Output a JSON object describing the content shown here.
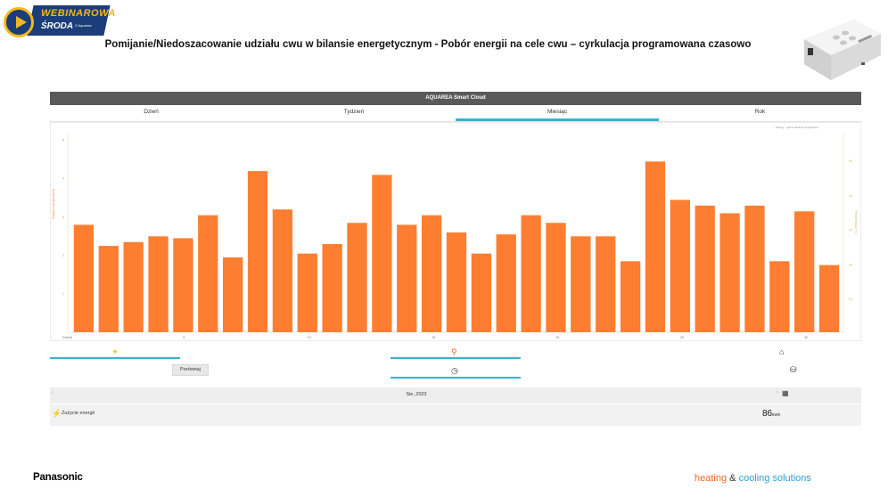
{
  "logo": {
    "line1": "WEBINAROWA",
    "line2": "ŚRODA",
    "line3": "Z Aquarea"
  },
  "slide_title": "Pomijanie/Niedoszacowanie udziału cwu w bilansie energetycznym - Pobór energii na cele cwu – cyrkulacja programowana czasowo",
  "app": {
    "title": "AQUAREA Smart Cloud",
    "tabs": [
      {
        "label": "Dzień",
        "active": false
      },
      {
        "label": "Tydzień",
        "active": false
      },
      {
        "label": "Miesiąc",
        "active": true
      },
      {
        "label": "Rok",
        "active": false
      }
    ],
    "legend_note": "Energy · jest to wartości przybliżone",
    "left_axis_label": "Zużycie energii (kWh)",
    "right_axis_label": "Temperatura (°C)",
    "controls": {
      "compare_label": "Porównaj"
    },
    "date_label": "Sie.,2023",
    "energy_label": "Zużycie energii",
    "energy_value": "86",
    "energy_unit": "kWh"
  },
  "chart_data": {
    "type": "bar",
    "x": [
      1,
      2,
      3,
      4,
      5,
      6,
      7,
      8,
      9,
      10,
      11,
      12,
      13,
      14,
      15,
      16,
      17,
      18,
      19,
      20,
      21,
      22,
      23,
      24,
      25,
      26,
      27,
      28,
      29,
      30,
      31
    ],
    "values": [
      2.8,
      2.25,
      2.35,
      2.5,
      2.45,
      3.05,
      1.95,
      4.2,
      3.2,
      2.05,
      2.3,
      2.85,
      4.1,
      2.8,
      3.05,
      2.6,
      2.05,
      2.55,
      3.05,
      2.85,
      2.5,
      2.5,
      1.85,
      4.45,
      3.45,
      3.3,
      3.1,
      3.3,
      1.85,
      3.15,
      1.75
    ],
    "x_tick_labels": [
      "Sobota",
      "5",
      "10",
      "15",
      "20",
      "25",
      "30"
    ],
    "x_tick_positions": [
      1,
      5,
      10,
      15,
      20,
      25,
      30
    ],
    "left_ticks": [
      "",
      "1",
      "2",
      "3",
      "4",
      "5"
    ],
    "right_ticks": [
      "10",
      "20",
      "30",
      "40",
      "50"
    ],
    "ylim": [
      0,
      5.2
    ],
    "bar_color": "#fd7e31"
  },
  "footer": {
    "brand": "Panasonic",
    "heating": "heating",
    "amp": "&",
    "cooling": "cooling solutions"
  },
  "colors": {
    "accent": "#3ab2d0",
    "bar": "#fd7e31",
    "appbar": "#595959"
  }
}
